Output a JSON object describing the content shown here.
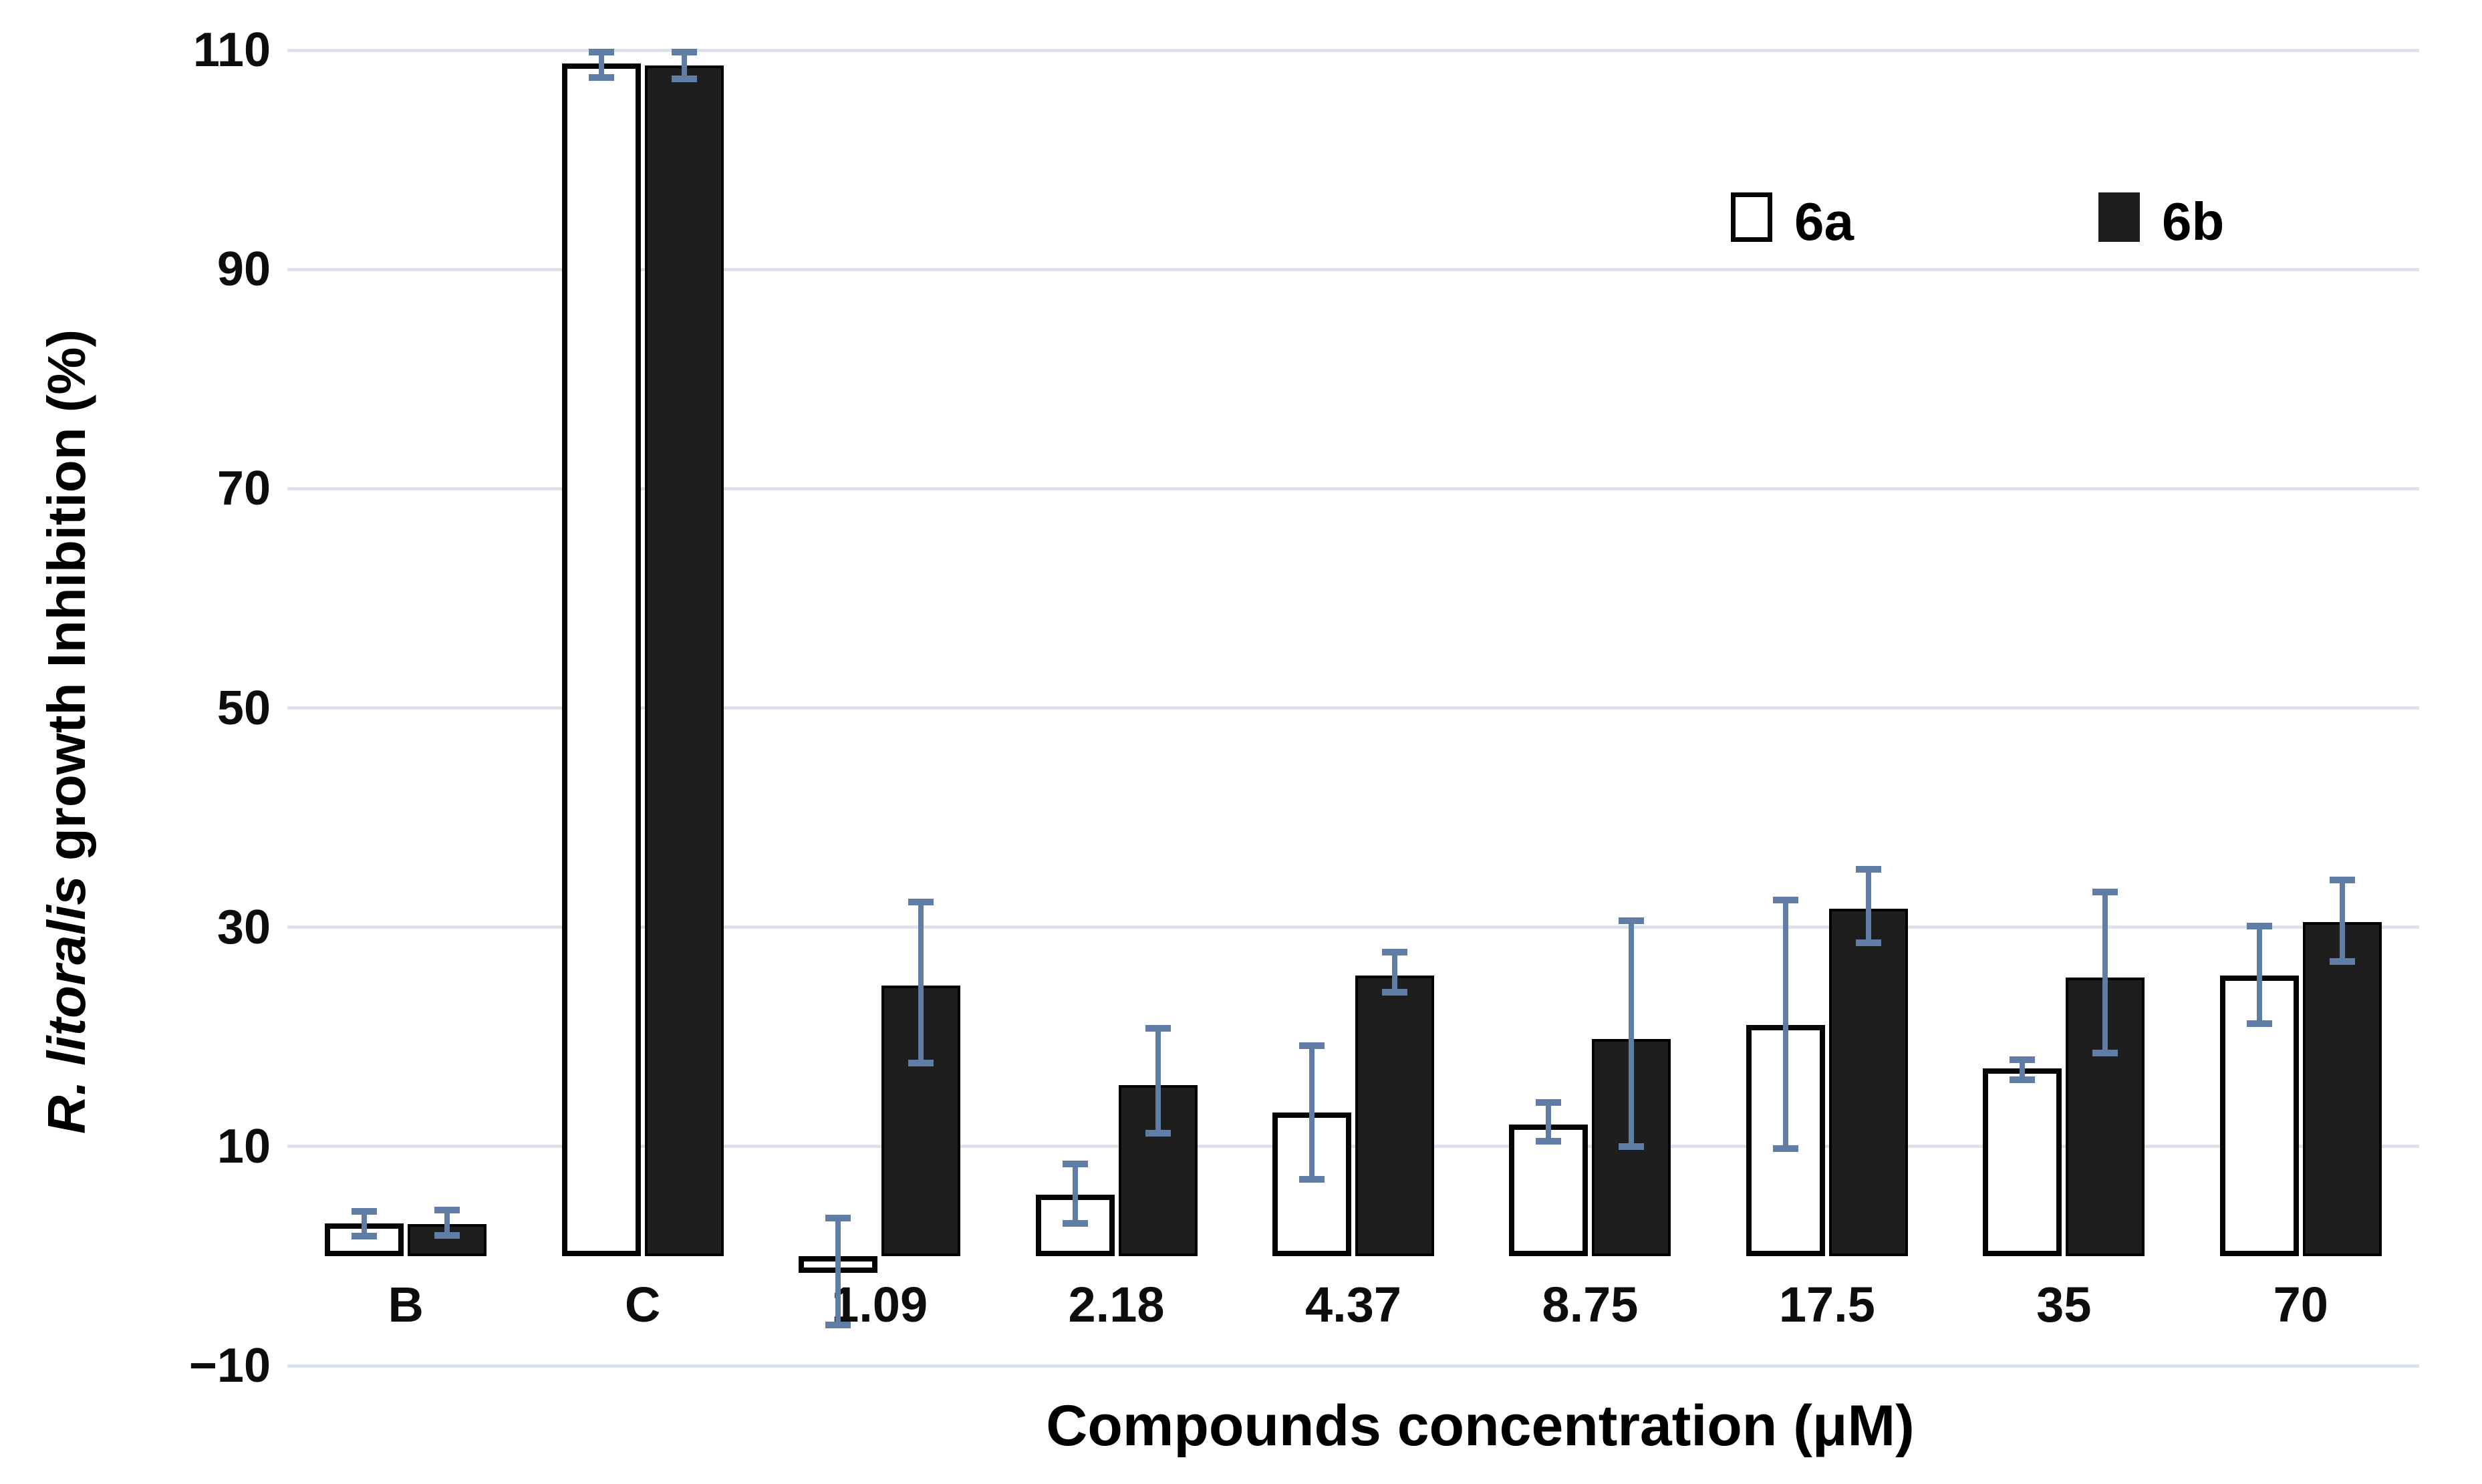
{
  "figure": {
    "x_axis_title": "Compounds concentration (μM)",
    "y_axis_title_italic": "R. litoralis",
    "y_axis_title_rest": " growth Inhibition (%)",
    "legend": [
      {
        "label": "6a",
        "swatch": "open-square"
      },
      {
        "label": "6b",
        "swatch": "filled-square"
      }
    ]
  },
  "chart_data": {
    "type": "bar",
    "title": "",
    "xlabel": "Compounds concentration (μM)",
    "ylabel": "R. litoralis growth Inhibition (%)",
    "categories": [
      "B",
      "C",
      "1.09",
      "2.18",
      "4.37",
      "8.75",
      "17.5",
      "35",
      "70"
    ],
    "series": [
      {
        "name": "6a",
        "style": "open",
        "fill": "#ffffff",
        "values": [
          3.0,
          108.8,
          -1.5,
          5.6,
          13.1,
          12.0,
          21.1,
          17.1,
          25.6
        ],
        "err_low": [
          1.8,
          107.5,
          -6.3,
          3.0,
          7.0,
          10.5,
          9.8,
          16.1,
          21.2
        ],
        "err_high": [
          4.1,
          109.8,
          3.5,
          8.4,
          19.2,
          14.0,
          32.5,
          17.9,
          30.1
        ]
      },
      {
        "name": "6b",
        "style": "filled",
        "fill": "#1e1e1e",
        "values": [
          2.9,
          108.6,
          24.7,
          15.6,
          25.6,
          19.8,
          31.7,
          25.4,
          30.5
        ],
        "err_low": [
          1.9,
          107.4,
          17.6,
          11.2,
          24.1,
          10.0,
          28.6,
          18.5,
          26.9
        ],
        "err_high": [
          4.2,
          109.8,
          32.3,
          20.8,
          27.7,
          30.6,
          35.3,
          33.2,
          34.3
        ]
      }
    ],
    "yticks": [
      {
        "value": 110,
        "label": "110"
      },
      {
        "value": 90,
        "label": "90"
      },
      {
        "value": 70,
        "label": "70"
      },
      {
        "value": 50,
        "label": "50"
      },
      {
        "value": 30,
        "label": "30"
      },
      {
        "value": 10,
        "label": "10"
      },
      {
        "value": -10,
        "label": "−10"
      }
    ],
    "ylim": [
      -10,
      110
    ],
    "grid": true,
    "legend_position": "top-right",
    "colors": {
      "error_bar": "#5f7da5",
      "gridline": "#dce3ee",
      "bar_filled": "#1e1e1e",
      "bar_open_fill": "#ffffff",
      "bar_outline": "#050505"
    }
  }
}
